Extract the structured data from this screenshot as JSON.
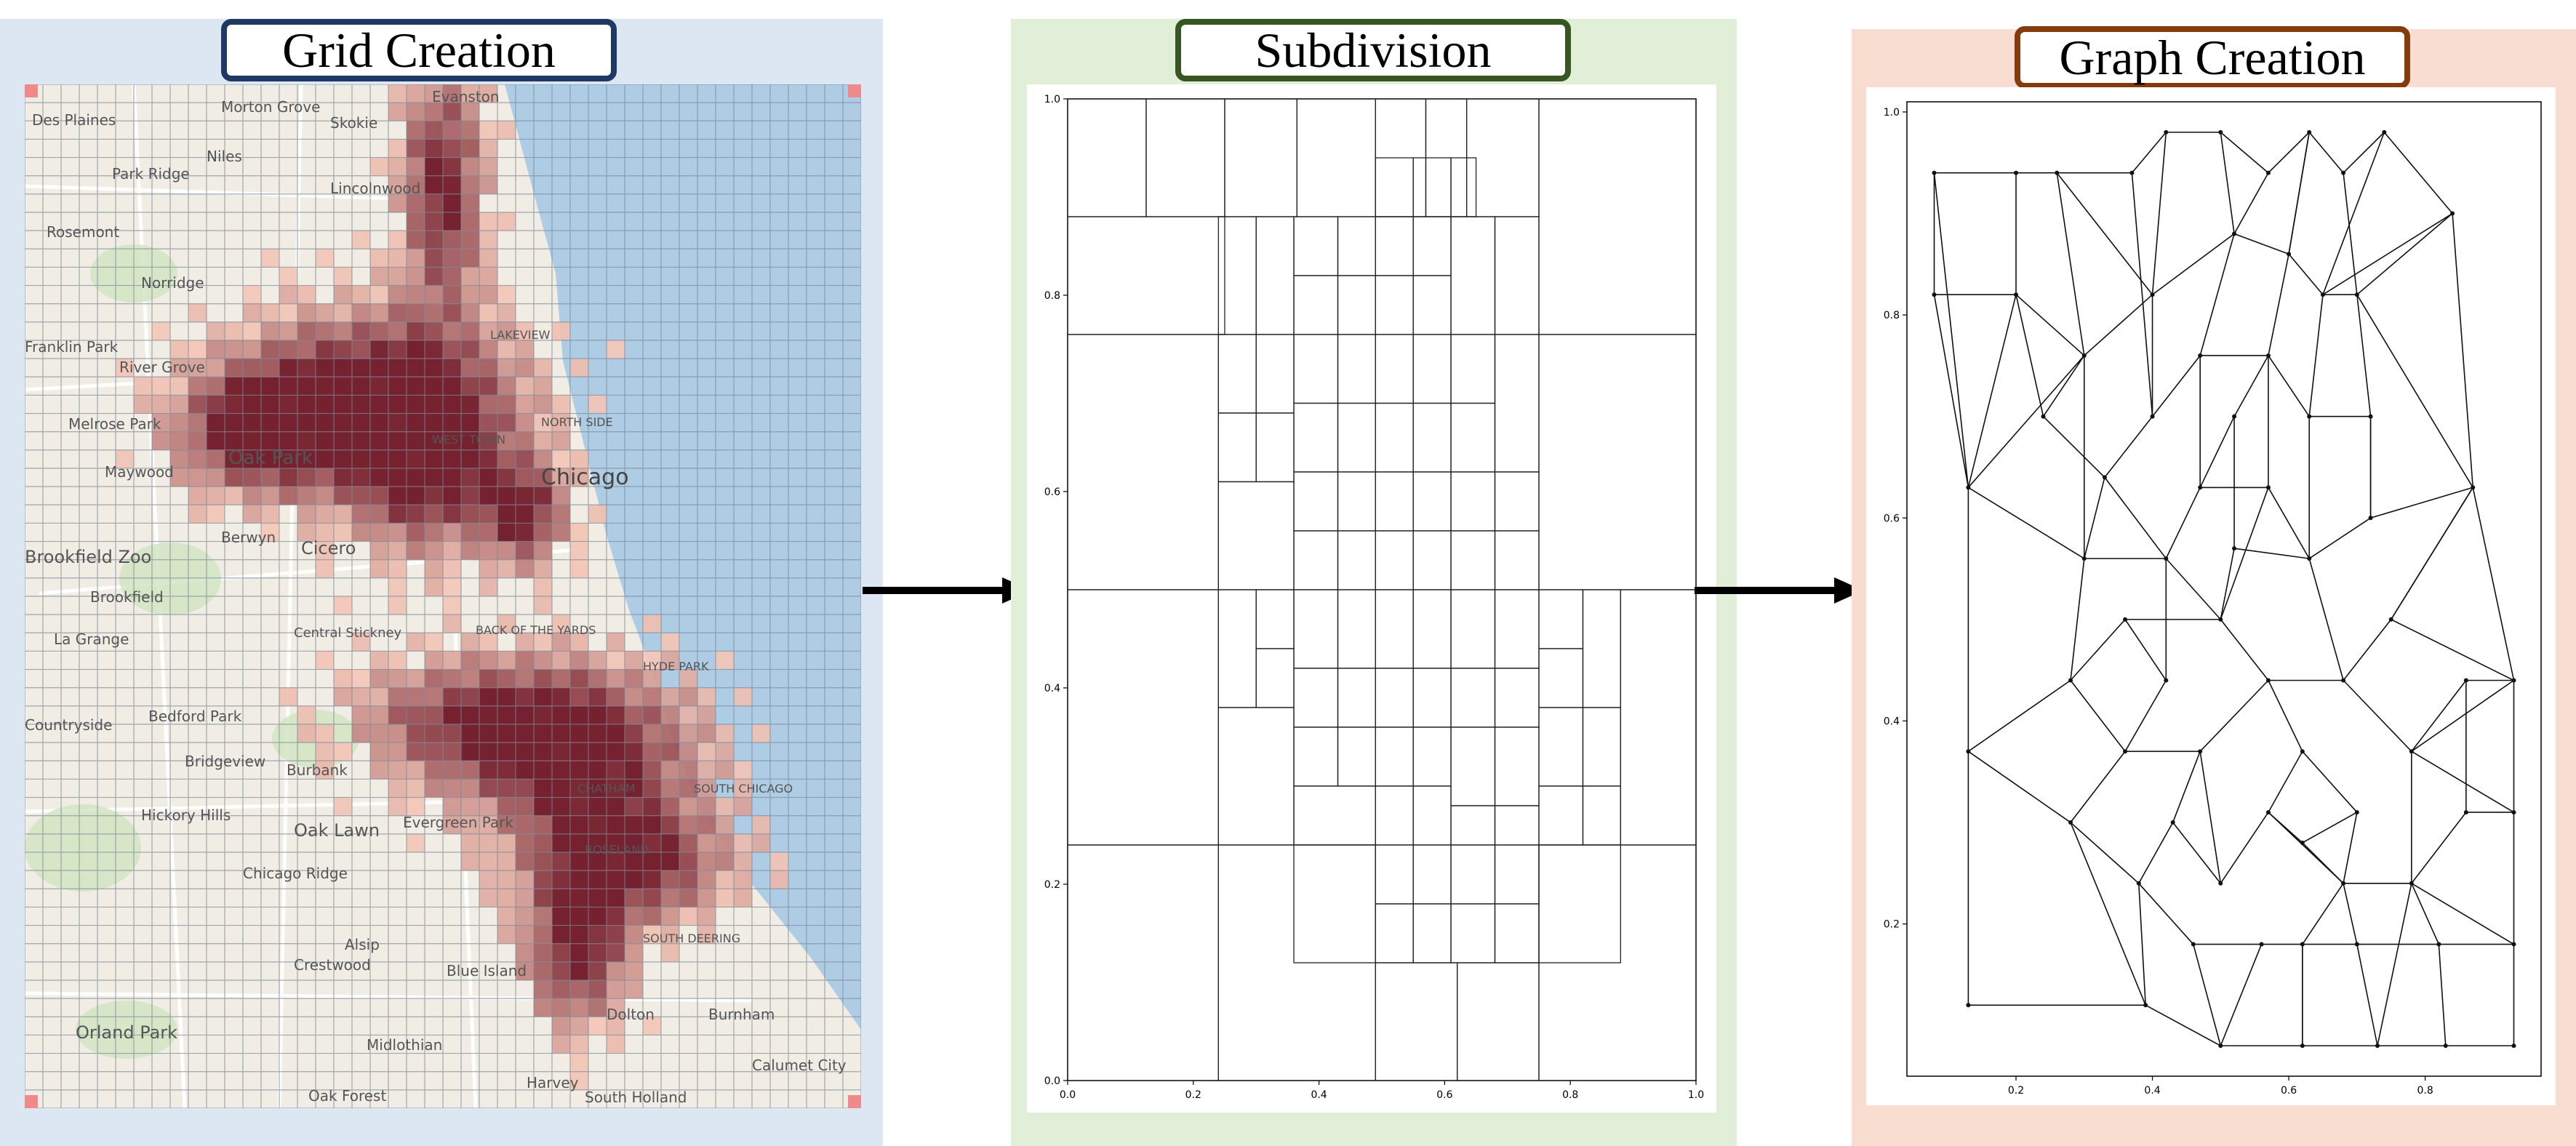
{
  "colors": {
    "grid_bg": "#dde7f3",
    "subdivision_bg": "#e1eed8",
    "graph_bg": "#f8ddd0",
    "grid_border": "#1f3864",
    "subdivision_border": "#375623",
    "graph_border": "#843c0c",
    "water": "#aecce4",
    "land": "#f2ede4",
    "heat_low": "#f4c7b8",
    "heat_high": "#6b0f1f"
  },
  "panels": {
    "grid": {
      "title": "Grid Creation"
    },
    "subdivision": {
      "title": "Subdivision"
    },
    "graph": {
      "title": "Graph Creation"
    }
  },
  "map_labels": [
    "Des Plaines",
    "Morton Grove",
    "Skokie",
    "Evanston",
    "Niles",
    "Park Ridge",
    "Lincolnwood",
    "Rosemont",
    "Norridge",
    "Franklin Park",
    "River Grove",
    "Melrose Park",
    "Oak Park",
    "Maywood",
    "Chicago",
    "Berwyn",
    "Cicero",
    "Brookfield Zoo",
    "Brookfield",
    "La Grange",
    "Countryside",
    "Bedford Park",
    "Bridgeview",
    "Burbank",
    "Hickory Hills",
    "Oak Lawn",
    "Evergreen Park",
    "Chicago Ridge",
    "Alsip",
    "Crestwood",
    "Blue Island",
    "Orland Park",
    "Midlothian",
    "Oak Forest",
    "Harvey",
    "South Holland",
    "Dolton",
    "Burnham",
    "Calumet City",
    "LAKEVIEW",
    "WEST TOWN",
    "HYDE PARK",
    "CHATHAM",
    "SOUTH CHICAGO",
    "ROSELAND",
    "SOUTH DEERING",
    "NORTH SIDE",
    "Central Stickney",
    "BACK OF THE YARDS"
  ],
  "subdivision_chart": {
    "type": "diagram",
    "description_free": true,
    "xlim": [
      0,
      1
    ],
    "ylim": [
      0,
      1
    ],
    "xticks": [
      "0.0",
      "0.2",
      "0.4",
      "0.6",
      "0.8",
      "1.0"
    ],
    "yticks": [
      "0.0",
      "0.2",
      "0.4",
      "0.6",
      "0.8",
      "1.0"
    ],
    "rects": [
      [
        0,
        0.88,
        0.125,
        1
      ],
      [
        0.125,
        0.88,
        0.25,
        1
      ],
      [
        0,
        0.76,
        0.25,
        0.88
      ],
      [
        0.25,
        0.88,
        0.365,
        1
      ],
      [
        0.365,
        0.88,
        0.49,
        1
      ],
      [
        0.49,
        0.88,
        0.57,
        1
      ],
      [
        0.57,
        0.88,
        0.635,
        1
      ],
      [
        0.635,
        0.88,
        0.75,
        1
      ],
      [
        0.75,
        0.76,
        1,
        1
      ],
      [
        0,
        0.5,
        0.24,
        0.76
      ],
      [
        0,
        0.24,
        0.24,
        0.5
      ],
      [
        0,
        0,
        0.24,
        0.24
      ],
      [
        0.24,
        0,
        0.49,
        0.24
      ],
      [
        0.75,
        0,
        1,
        0.24
      ],
      [
        0.88,
        0.24,
        1,
        0.5
      ],
      [
        0.75,
        0.5,
        1,
        0.76
      ],
      [
        0.24,
        0.5,
        0.36,
        0.61
      ],
      [
        0.24,
        0.38,
        0.3,
        0.5
      ],
      [
        0.24,
        0.24,
        0.36,
        0.38
      ],
      [
        0.49,
        0,
        0.62,
        0.12
      ],
      [
        0.62,
        0,
        0.75,
        0.12
      ],
      [
        0.75,
        0.12,
        0.88,
        0.24
      ],
      [
        0.49,
        0.12,
        0.55,
        0.18
      ],
      [
        0.55,
        0.12,
        0.61,
        0.18
      ],
      [
        0.49,
        0.18,
        0.55,
        0.24
      ],
      [
        0.55,
        0.18,
        0.61,
        0.24
      ],
      [
        0.61,
        0.18,
        0.68,
        0.24
      ],
      [
        0.68,
        0.12,
        0.75,
        0.18
      ],
      [
        0.68,
        0.18,
        0.75,
        0.24
      ],
      [
        0.61,
        0.24,
        0.68,
        0.28
      ],
      [
        0.68,
        0.24,
        0.75,
        0.28
      ],
      [
        0.36,
        0.24,
        0.49,
        0.3
      ],
      [
        0.49,
        0.24,
        0.55,
        0.3
      ],
      [
        0.55,
        0.24,
        0.61,
        0.3
      ],
      [
        0.36,
        0.3,
        0.43,
        0.36
      ],
      [
        0.43,
        0.3,
        0.49,
        0.36
      ],
      [
        0.3,
        0.38,
        0.36,
        0.44
      ],
      [
        0.3,
        0.44,
        0.36,
        0.5
      ],
      [
        0.36,
        0.36,
        0.43,
        0.42
      ],
      [
        0.43,
        0.36,
        0.49,
        0.42
      ],
      [
        0.36,
        0.42,
        0.43,
        0.5
      ],
      [
        0.43,
        0.42,
        0.49,
        0.5
      ],
      [
        0.49,
        0.3,
        0.55,
        0.36
      ],
      [
        0.55,
        0.3,
        0.61,
        0.36
      ],
      [
        0.61,
        0.28,
        0.68,
        0.36
      ],
      [
        0.68,
        0.28,
        0.75,
        0.36
      ],
      [
        0.75,
        0.24,
        0.82,
        0.3
      ],
      [
        0.82,
        0.24,
        0.88,
        0.3
      ],
      [
        0.75,
        0.3,
        0.82,
        0.38
      ],
      [
        0.82,
        0.3,
        0.88,
        0.38
      ],
      [
        0.75,
        0.38,
        0.82,
        0.44
      ],
      [
        0.82,
        0.38,
        0.88,
        0.5
      ],
      [
        0.75,
        0.44,
        0.82,
        0.5
      ],
      [
        0.49,
        0.36,
        0.55,
        0.42
      ],
      [
        0.55,
        0.36,
        0.61,
        0.42
      ],
      [
        0.61,
        0.36,
        0.68,
        0.42
      ],
      [
        0.68,
        0.36,
        0.75,
        0.42
      ],
      [
        0.49,
        0.42,
        0.55,
        0.5
      ],
      [
        0.55,
        0.42,
        0.61,
        0.5
      ],
      [
        0.61,
        0.42,
        0.68,
        0.5
      ],
      [
        0.68,
        0.42,
        0.75,
        0.5
      ],
      [
        0.36,
        0.5,
        0.43,
        0.56
      ],
      [
        0.43,
        0.5,
        0.49,
        0.56
      ],
      [
        0.36,
        0.56,
        0.43,
        0.62
      ],
      [
        0.43,
        0.56,
        0.49,
        0.62
      ],
      [
        0.49,
        0.5,
        0.55,
        0.56
      ],
      [
        0.55,
        0.5,
        0.61,
        0.56
      ],
      [
        0.61,
        0.5,
        0.68,
        0.56
      ],
      [
        0.68,
        0.5,
        0.75,
        0.56
      ],
      [
        0.49,
        0.56,
        0.55,
        0.62
      ],
      [
        0.55,
        0.56,
        0.61,
        0.62
      ],
      [
        0.61,
        0.56,
        0.68,
        0.62
      ],
      [
        0.68,
        0.56,
        0.75,
        0.62
      ],
      [
        0.24,
        0.61,
        0.3,
        0.68
      ],
      [
        0.3,
        0.61,
        0.36,
        0.68
      ],
      [
        0.24,
        0.68,
        0.3,
        0.76
      ],
      [
        0.3,
        0.68,
        0.36,
        0.76
      ],
      [
        0.36,
        0.62,
        0.43,
        0.69
      ],
      [
        0.43,
        0.62,
        0.49,
        0.69
      ],
      [
        0.36,
        0.69,
        0.43,
        0.76
      ],
      [
        0.43,
        0.69,
        0.49,
        0.76
      ],
      [
        0.49,
        0.62,
        0.55,
        0.69
      ],
      [
        0.55,
        0.62,
        0.61,
        0.69
      ],
      [
        0.61,
        0.62,
        0.68,
        0.69
      ],
      [
        0.68,
        0.62,
        0.75,
        0.76
      ],
      [
        0.49,
        0.69,
        0.55,
        0.76
      ],
      [
        0.55,
        0.69,
        0.61,
        0.76
      ],
      [
        0.61,
        0.69,
        0.68,
        0.76
      ],
      [
        0.24,
        0.76,
        0.3,
        0.88
      ],
      [
        0.3,
        0.76,
        0.36,
        0.88
      ],
      [
        0.36,
        0.76,
        0.43,
        0.82
      ],
      [
        0.43,
        0.76,
        0.49,
        0.82
      ],
      [
        0.36,
        0.82,
        0.43,
        0.88
      ],
      [
        0.43,
        0.82,
        0.49,
        0.88
      ],
      [
        0.49,
        0.76,
        0.55,
        0.82
      ],
      [
        0.55,
        0.76,
        0.61,
        0.82
      ],
      [
        0.49,
        0.82,
        0.55,
        0.88
      ],
      [
        0.55,
        0.82,
        0.61,
        0.88
      ],
      [
        0.61,
        0.76,
        0.68,
        0.88
      ],
      [
        0.68,
        0.76,
        0.75,
        0.88
      ],
      [
        0.49,
        0.88,
        0.55,
        0.94
      ],
      [
        0.55,
        0.88,
        0.61,
        0.94
      ],
      [
        0.61,
        0.88,
        0.65,
        0.94
      ],
      [
        0.36,
        0.12,
        0.49,
        0.24
      ],
      [
        0.61,
        0.12,
        0.68,
        0.18
      ]
    ]
  },
  "graph_chart": {
    "type": "diagram",
    "xlim": [
      0.04,
      0.97
    ],
    "ylim": [
      0.05,
      1.01
    ],
    "xticks": [
      "0.2",
      "0.4",
      "0.6",
      "0.8"
    ],
    "yticks": [
      "0.2",
      "0.4",
      "0.6",
      "0.8",
      "1.0"
    ],
    "nodes": [
      [
        0.08,
        0.94
      ],
      [
        0.2,
        0.94
      ],
      [
        0.08,
        0.82
      ],
      [
        0.13,
        0.63
      ],
      [
        0.2,
        0.82
      ],
      [
        0.26,
        0.94
      ],
      [
        0.3,
        0.76
      ],
      [
        0.3,
        0.56
      ],
      [
        0.37,
        0.94
      ],
      [
        0.42,
        0.98
      ],
      [
        0.5,
        0.98
      ],
      [
        0.57,
        0.94
      ],
      [
        0.63,
        0.98
      ],
      [
        0.68,
        0.94
      ],
      [
        0.74,
        0.98
      ],
      [
        0.84,
        0.9
      ],
      [
        0.7,
        0.82
      ],
      [
        0.87,
        0.63
      ],
      [
        0.75,
        0.5
      ],
      [
        0.93,
        0.44
      ],
      [
        0.93,
        0.31
      ],
      [
        0.93,
        0.18
      ],
      [
        0.93,
        0.08
      ],
      [
        0.83,
        0.08
      ],
      [
        0.73,
        0.08
      ],
      [
        0.62,
        0.08
      ],
      [
        0.5,
        0.08
      ],
      [
        0.39,
        0.12
      ],
      [
        0.13,
        0.12
      ],
      [
        0.13,
        0.37
      ],
      [
        0.28,
        0.3
      ],
      [
        0.28,
        0.44
      ],
      [
        0.36,
        0.37
      ],
      [
        0.42,
        0.44
      ],
      [
        0.42,
        0.56
      ],
      [
        0.5,
        0.5
      ],
      [
        0.57,
        0.63
      ],
      [
        0.63,
        0.56
      ],
      [
        0.68,
        0.44
      ],
      [
        0.78,
        0.37
      ],
      [
        0.78,
        0.24
      ],
      [
        0.68,
        0.24
      ],
      [
        0.57,
        0.31
      ],
      [
        0.5,
        0.24
      ],
      [
        0.47,
        0.37
      ],
      [
        0.57,
        0.44
      ],
      [
        0.62,
        0.37
      ],
      [
        0.7,
        0.31
      ],
      [
        0.62,
        0.18
      ],
      [
        0.56,
        0.18
      ],
      [
        0.46,
        0.18
      ],
      [
        0.38,
        0.24
      ],
      [
        0.36,
        0.5
      ],
      [
        0.47,
        0.63
      ],
      [
        0.47,
        0.76
      ],
      [
        0.57,
        0.76
      ],
      [
        0.63,
        0.7
      ],
      [
        0.4,
        0.7
      ],
      [
        0.4,
        0.82
      ],
      [
        0.52,
        0.88
      ],
      [
        0.6,
        0.86
      ],
      [
        0.65,
        0.82
      ],
      [
        0.72,
        0.7
      ],
      [
        0.72,
        0.6
      ],
      [
        0.33,
        0.64
      ],
      [
        0.24,
        0.7
      ],
      [
        0.52,
        0.7
      ],
      [
        0.52,
        0.57
      ],
      [
        0.43,
        0.3
      ],
      [
        0.62,
        0.28
      ],
      [
        0.7,
        0.18
      ],
      [
        0.82,
        0.18
      ],
      [
        0.86,
        0.31
      ],
      [
        0.86,
        0.44
      ]
    ],
    "edges": [
      [
        0,
        1
      ],
      [
        0,
        2
      ],
      [
        1,
        4
      ],
      [
        2,
        4
      ],
      [
        1,
        5
      ],
      [
        2,
        3
      ],
      [
        4,
        3
      ],
      [
        0,
        3
      ],
      [
        4,
        6
      ],
      [
        5,
        6
      ],
      [
        6,
        3
      ],
      [
        3,
        7
      ],
      [
        6,
        7
      ],
      [
        5,
        8
      ],
      [
        8,
        9
      ],
      [
        9,
        10
      ],
      [
        10,
        11
      ],
      [
        11,
        12
      ],
      [
        12,
        13
      ],
      [
        13,
        14
      ],
      [
        14,
        15
      ],
      [
        15,
        16
      ],
      [
        13,
        16
      ],
      [
        15,
        17
      ],
      [
        16,
        17
      ],
      [
        17,
        18
      ],
      [
        17,
        19
      ],
      [
        19,
        20
      ],
      [
        20,
        21
      ],
      [
        21,
        22
      ],
      [
        22,
        23
      ],
      [
        23,
        24
      ],
      [
        24,
        25
      ],
      [
        25,
        26
      ],
      [
        26,
        27
      ],
      [
        27,
        28
      ],
      [
        28,
        29
      ],
      [
        29,
        30
      ],
      [
        29,
        31
      ],
      [
        3,
        29
      ],
      [
        7,
        31
      ],
      [
        30,
        27
      ],
      [
        31,
        32
      ],
      [
        30,
        32
      ],
      [
        32,
        33
      ],
      [
        33,
        34
      ],
      [
        34,
        7
      ],
      [
        34,
        35
      ],
      [
        35,
        36
      ],
      [
        36,
        37
      ],
      [
        37,
        38
      ],
      [
        38,
        39
      ],
      [
        39,
        40
      ],
      [
        40,
        41
      ],
      [
        41,
        42
      ],
      [
        42,
        43
      ],
      [
        43,
        44
      ],
      [
        44,
        32
      ],
      [
        44,
        45
      ],
      [
        45,
        46
      ],
      [
        46,
        47
      ],
      [
        47,
        41
      ],
      [
        41,
        48
      ],
      [
        48,
        49
      ],
      [
        49,
        50
      ],
      [
        50,
        51
      ],
      [
        51,
        30
      ],
      [
        51,
        27
      ],
      [
        50,
        26
      ],
      [
        48,
        25
      ],
      [
        40,
        24
      ],
      [
        40,
        21
      ],
      [
        39,
        20
      ],
      [
        39,
        19
      ],
      [
        18,
        19
      ],
      [
        18,
        17
      ],
      [
        18,
        38
      ],
      [
        37,
        63
      ],
      [
        63,
        17
      ],
      [
        63,
        62
      ],
      [
        62,
        16
      ],
      [
        62,
        56
      ],
      [
        56,
        37
      ],
      [
        56,
        55
      ],
      [
        55,
        36
      ],
      [
        36,
        53
      ],
      [
        53,
        54
      ],
      [
        54,
        55
      ],
      [
        54,
        57
      ],
      [
        57,
        58
      ],
      [
        58,
        9
      ],
      [
        58,
        6
      ],
      [
        57,
        64
      ],
      [
        64,
        65
      ],
      [
        65,
        6
      ],
      [
        64,
        7
      ],
      [
        64,
        34
      ],
      [
        53,
        34
      ],
      [
        53,
        66
      ],
      [
        66,
        67
      ],
      [
        67,
        35
      ],
      [
        67,
        37
      ],
      [
        66,
        55
      ],
      [
        59,
        60
      ],
      [
        60,
        61
      ],
      [
        61,
        16
      ],
      [
        59,
        10
      ],
      [
        60,
        12
      ],
      [
        61,
        15
      ],
      [
        59,
        58
      ],
      [
        54,
        59
      ],
      [
        55,
        60
      ],
      [
        56,
        61
      ],
      [
        52,
        33
      ],
      [
        52,
        35
      ],
      [
        52,
        31
      ],
      [
        68,
        43
      ],
      [
        68,
        51
      ],
      [
        68,
        44
      ],
      [
        69,
        42
      ],
      [
        69,
        47
      ],
      [
        69,
        41
      ],
      [
        70,
        41
      ],
      [
        70,
        71
      ],
      [
        71,
        40
      ],
      [
        71,
        21
      ],
      [
        72,
        20
      ],
      [
        72,
        40
      ],
      [
        73,
        19
      ],
      [
        73,
        39
      ],
      [
        73,
        72
      ],
      [
        45,
        38
      ],
      [
        46,
        42
      ],
      [
        35,
        45
      ],
      [
        70,
        48
      ],
      [
        23,
        71
      ],
      [
        24,
        70
      ],
      [
        25,
        48
      ],
      [
        26,
        49
      ],
      [
        62,
        63
      ],
      [
        14,
        61
      ],
      [
        11,
        59
      ],
      [
        8,
        57
      ],
      [
        5,
        58
      ],
      [
        65,
        4
      ],
      [
        12,
        60
      ]
    ]
  }
}
